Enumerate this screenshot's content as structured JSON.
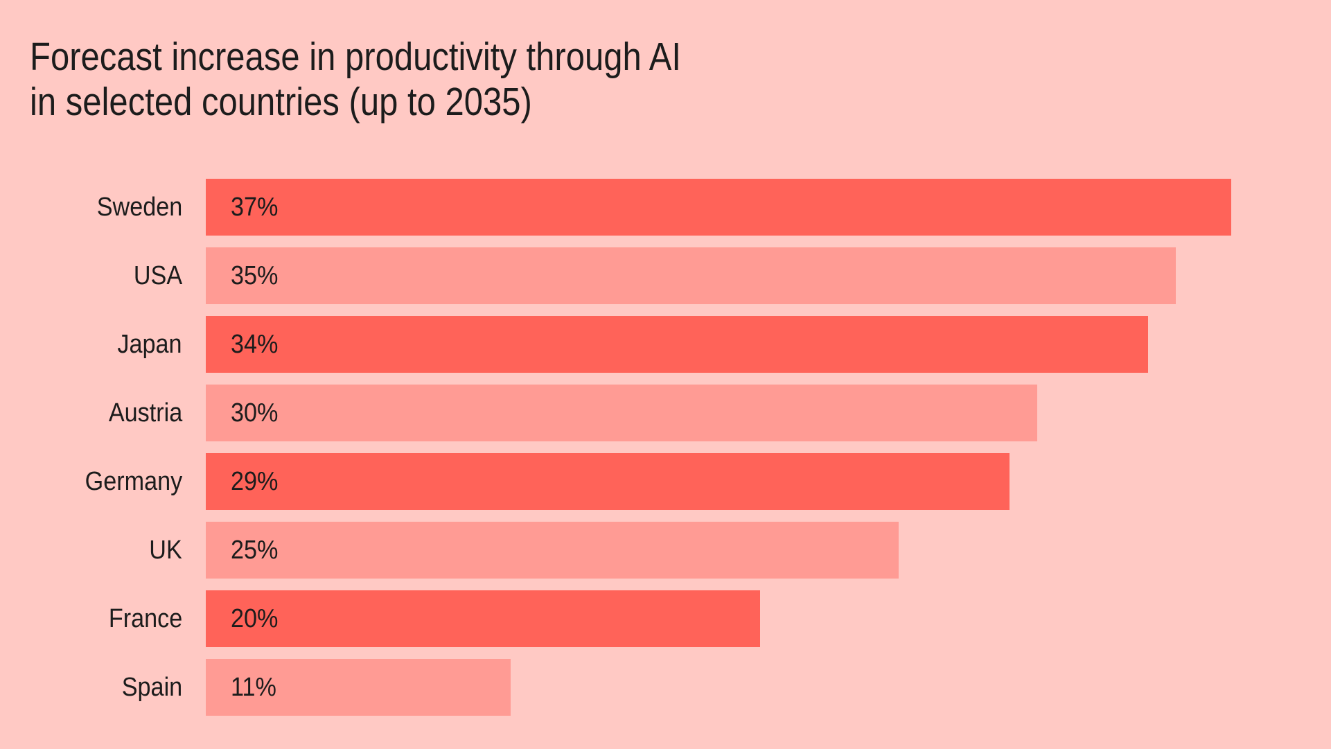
{
  "chart_data": {
    "type": "bar",
    "orientation": "horizontal",
    "title": "Forecast increase in productivity through AI in selected countries (up to 2035)",
    "title_line1": "Forecast increase in productivity through AI",
    "title_line2": "in selected countries (up to 2035)",
    "categories": [
      "Sweden",
      "USA",
      "Japan",
      "Austria",
      "Germany",
      "UK",
      "France",
      "Spain"
    ],
    "values": [
      37,
      35,
      34,
      30,
      29,
      25,
      20,
      11
    ],
    "unit": "%",
    "value_labels": [
      "37%",
      "35%",
      "34%",
      "30%",
      "29%",
      "25%",
      "20%",
      "11%"
    ],
    "xlabel": "",
    "ylabel": "",
    "xlim": [
      0,
      41
    ],
    "grid": false,
    "legend": false,
    "colors": {
      "background": "#FFC9C4",
      "bar_dark": "#FF6359",
      "bar_light": "#FF9B94",
      "text": "#1C1C1C"
    },
    "bar_color_pattern": [
      "bar_dark",
      "bar_light"
    ]
  }
}
